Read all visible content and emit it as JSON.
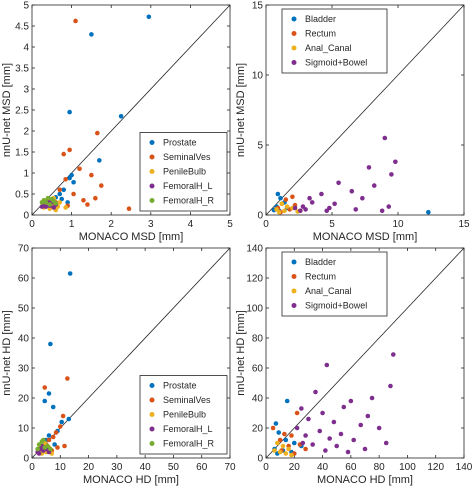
{
  "figure": {
    "colors": {
      "Prostate": "#0072BD",
      "SeminalVes": "#D95319",
      "PenileBulb": "#EDB120",
      "FemoralH_L": "#7E2F8E",
      "FemoralH_R": "#77AC30",
      "Bladder": "#0072BD",
      "Rectum": "#D95319",
      "Anal_Canal": "#EDB120",
      "Sigmoid+Bowel": "#7E2F8E"
    }
  },
  "chart_data": [
    {
      "type": "scatter",
      "xlabel": "MONACO MSD [mm]",
      "ylabel": "nnU-net MSD [mm]",
      "xlim": [
        0,
        5
      ],
      "ylim": [
        0,
        5
      ],
      "xticks": [
        0,
        1,
        2,
        3,
        4,
        5
      ],
      "yticks": [
        0,
        0.5,
        1,
        1.5,
        2,
        2.5,
        3,
        3.5,
        4,
        4.5,
        5
      ],
      "diagonal": true,
      "grid": false,
      "legend_position": "bottom-right",
      "series": [
        {
          "name": "Prostate",
          "points": [
            [
              2.95,
              4.72
            ],
            [
              1.5,
              4.3
            ],
            [
              0.95,
              2.45
            ],
            [
              2.25,
              2.35
            ],
            [
              1.7,
              1.3
            ],
            [
              1.0,
              0.95
            ],
            [
              0.95,
              0.88
            ],
            [
              1.05,
              0.78
            ],
            [
              0.8,
              0.6
            ],
            [
              0.7,
              0.5
            ],
            [
              0.6,
              0.42
            ],
            [
              0.5,
              0.35
            ],
            [
              0.45,
              0.3
            ],
            [
              0.75,
              0.38
            ],
            [
              0.9,
              0.3
            ]
          ]
        },
        {
          "name": "SeminalVes",
          "points": [
            [
              1.1,
              4.62
            ],
            [
              1.65,
              1.95
            ],
            [
              0.95,
              1.55
            ],
            [
              0.8,
              1.45
            ],
            [
              1.2,
              1.1
            ],
            [
              1.75,
              0.7
            ],
            [
              1.6,
              0.4
            ],
            [
              1.4,
              0.25
            ],
            [
              2.45,
              0.15
            ],
            [
              1.5,
              0.95
            ],
            [
              0.85,
              0.85
            ],
            [
              0.7,
              0.6
            ],
            [
              1.05,
              0.5
            ],
            [
              1.3,
              0.35
            ],
            [
              0.6,
              0.3
            ],
            [
              0.9,
              0.22
            ]
          ]
        },
        {
          "name": "PenileBulb",
          "points": [
            [
              0.4,
              0.35
            ],
            [
              0.55,
              0.4
            ],
            [
              0.7,
              0.3
            ],
            [
              0.35,
              0.25
            ],
            [
              0.5,
              0.22
            ],
            [
              0.65,
              0.2
            ],
            [
              0.85,
              0.18
            ],
            [
              0.45,
              0.15
            ],
            [
              0.3,
              0.18
            ],
            [
              0.6,
              0.12
            ]
          ]
        },
        {
          "name": "FemoralH_L",
          "points": [
            [
              0.3,
              0.28
            ],
            [
              0.4,
              0.32
            ],
            [
              0.5,
              0.3
            ],
            [
              0.35,
              0.2
            ],
            [
              0.45,
              0.22
            ],
            [
              0.55,
              0.18
            ],
            [
              0.25,
              0.2
            ],
            [
              0.6,
              0.25
            ]
          ]
        },
        {
          "name": "FemoralH_R",
          "points": [
            [
              0.3,
              0.35
            ],
            [
              0.4,
              0.4
            ],
            [
              0.5,
              0.38
            ],
            [
              0.35,
              0.3
            ],
            [
              0.45,
              0.25
            ],
            [
              0.55,
              0.33
            ],
            [
              0.6,
              0.28
            ],
            [
              0.25,
              0.3
            ]
          ]
        }
      ]
    },
    {
      "type": "scatter",
      "xlabel": "MONACO MSD [mm]",
      "ylabel": "nnU-net MSD [mm]",
      "xlim": [
        0,
        15
      ],
      "ylim": [
        0,
        15
      ],
      "xticks": [
        0,
        5,
        10,
        15
      ],
      "yticks": [
        0,
        5,
        10,
        15
      ],
      "diagonal": true,
      "grid": false,
      "legend_position": "top-left",
      "series": [
        {
          "name": "Bladder",
          "points": [
            [
              12.3,
              0.2
            ],
            [
              0.9,
              1.5
            ],
            [
              1.1,
              1.2
            ],
            [
              1.4,
              0.9
            ],
            [
              0.8,
              0.6
            ],
            [
              1.6,
              0.5
            ],
            [
              0.6,
              0.35
            ],
            [
              1.0,
              0.3
            ]
          ]
        },
        {
          "name": "Rectum",
          "points": [
            [
              2.0,
              1.3
            ],
            [
              1.5,
              1.1
            ],
            [
              1.2,
              0.8
            ],
            [
              2.2,
              0.7
            ],
            [
              0.9,
              0.5
            ],
            [
              1.8,
              0.4
            ],
            [
              2.6,
              0.3
            ],
            [
              1.1,
              0.2
            ]
          ]
        },
        {
          "name": "Anal_Canal",
          "points": [
            [
              1.2,
              0.8
            ],
            [
              1.6,
              0.6
            ],
            [
              2.0,
              0.5
            ],
            [
              0.8,
              0.4
            ],
            [
              1.4,
              0.3
            ],
            [
              2.4,
              0.25
            ],
            [
              1.0,
              0.2
            ]
          ]
        },
        {
          "name": "Sigmoid+Bowel",
          "points": [
            [
              9.0,
              5.5
            ],
            [
              9.8,
              3.8
            ],
            [
              7.8,
              3.4
            ],
            [
              5.5,
              2.3
            ],
            [
              9.5,
              2.9
            ],
            [
              8.2,
              2.1
            ],
            [
              6.5,
              1.7
            ],
            [
              4.2,
              1.5
            ],
            [
              7.3,
              1.2
            ],
            [
              3.5,
              0.9
            ],
            [
              5.2,
              0.8
            ],
            [
              9.3,
              0.6
            ],
            [
              4.8,
              0.5
            ],
            [
              3.0,
              0.4
            ],
            [
              6.8,
              0.4
            ],
            [
              2.6,
              0.3
            ],
            [
              2.8,
              0.6
            ],
            [
              3.3,
              1.2
            ],
            [
              4.6,
              0.3
            ],
            [
              8.8,
              0.3
            ],
            [
              2.2,
              0.5
            ]
          ]
        }
      ]
    },
    {
      "type": "scatter",
      "xlabel": "MONACO HD [mm]",
      "ylabel": "nnU-net HD [mm]",
      "xlim": [
        0,
        70
      ],
      "ylim": [
        0,
        70
      ],
      "xticks": [
        0,
        10,
        20,
        30,
        40,
        50,
        60,
        70
      ],
      "yticks": [
        0,
        10,
        20,
        30,
        40,
        50,
        60,
        70
      ],
      "diagonal": true,
      "grid": false,
      "legend_position": "bottom-right",
      "series": [
        {
          "name": "Prostate",
          "points": [
            [
              13.5,
              61.5
            ],
            [
              6.5,
              38.0
            ],
            [
              6.0,
              21.5
            ],
            [
              4.5,
              19.0
            ],
            [
              7.5,
              17.0
            ],
            [
              13.0,
              13.0
            ],
            [
              10.5,
              12.0
            ],
            [
              9.0,
              9.0
            ],
            [
              6.0,
              7.5
            ],
            [
              5.0,
              6.0
            ],
            [
              8.0,
              4.5
            ],
            [
              4.0,
              3.5
            ]
          ]
        },
        {
          "name": "SeminalVes",
          "points": [
            [
              4.5,
              23.5
            ],
            [
              12.5,
              26.5
            ],
            [
              11.0,
              14.0
            ],
            [
              10.0,
              10.5
            ],
            [
              8.5,
              8.5
            ],
            [
              7.5,
              7.0
            ],
            [
              6.0,
              6.0
            ],
            [
              5.0,
              4.5
            ],
            [
              11.5,
              4.0
            ],
            [
              9.0,
              3.5
            ],
            [
              3.5,
              3.0
            ],
            [
              7.0,
              2.5
            ]
          ]
        },
        {
          "name": "PenileBulb",
          "points": [
            [
              3.0,
              4.0
            ],
            [
              4.5,
              5.0
            ],
            [
              6.0,
              3.5
            ],
            [
              2.5,
              2.5
            ],
            [
              5.0,
              2.0
            ],
            [
              7.0,
              1.5
            ],
            [
              3.5,
              1.5
            ]
          ]
        },
        {
          "name": "FemoralH_L",
          "points": [
            [
              2.0,
              2.0
            ],
            [
              3.0,
              3.0
            ],
            [
              4.0,
              2.5
            ],
            [
              5.0,
              3.0
            ],
            [
              2.5,
              1.5
            ],
            [
              6.0,
              2.0
            ],
            [
              3.5,
              4.0
            ]
          ]
        },
        {
          "name": "FemoralH_R",
          "points": [
            [
              2.5,
              4.5
            ],
            [
              3.5,
              5.5
            ],
            [
              4.5,
              3.5
            ],
            [
              5.5,
              4.0
            ],
            [
              6.5,
              3.0
            ],
            [
              2.0,
              3.0
            ],
            [
              4.0,
              6.0
            ]
          ]
        }
      ]
    },
    {
      "type": "scatter",
      "xlabel": "MONACO HD [mm]",
      "ylabel": "nnU-net HD [mm]",
      "xlim": [
        0,
        140
      ],
      "ylim": [
        0,
        140
      ],
      "xticks": [
        0,
        20,
        40,
        60,
        80,
        100,
        120,
        140
      ],
      "yticks": [
        0,
        20,
        40,
        60,
        80,
        100,
        120,
        140
      ],
      "diagonal": true,
      "grid": false,
      "legend_position": "top-left",
      "series": [
        {
          "name": "Bladder",
          "points": [
            [
              15.0,
              38.0
            ],
            [
              7.0,
              23.0
            ],
            [
              9.0,
              17.0
            ],
            [
              14.0,
              12.0
            ],
            [
              20.0,
              10.0
            ],
            [
              25.0,
              8.0
            ],
            [
              6.0,
              6.0
            ],
            [
              12.0,
              5.0
            ],
            [
              18.0,
              4.0
            ],
            [
              8.0,
              3.0
            ]
          ]
        },
        {
          "name": "Rectum",
          "points": [
            [
              22.0,
              30.0
            ],
            [
              5.0,
              20.0
            ],
            [
              13.0,
              16.0
            ],
            [
              18.0,
              15.0
            ],
            [
              10.0,
              12.0
            ],
            [
              24.0,
              9.0
            ],
            [
              16.0,
              8.0
            ],
            [
              28.0,
              6.0
            ],
            [
              11.0,
              5.0
            ],
            [
              20.0,
              3.0
            ]
          ]
        },
        {
          "name": "Anal_Canal",
          "points": [
            [
              8.0,
              10.0
            ],
            [
              12.0,
              8.0
            ],
            [
              16.0,
              6.0
            ],
            [
              6.0,
              5.0
            ],
            [
              10.0,
              4.0
            ],
            [
              14.0,
              3.0
            ],
            [
              18.0,
              2.0
            ]
          ]
        },
        {
          "name": "Sigmoid+Bowel",
          "points": [
            [
              65.0,
              135.0
            ],
            [
              90.0,
              69.0
            ],
            [
              43.0,
              62.0
            ],
            [
              88.0,
              48.0
            ],
            [
              35.0,
              44.0
            ],
            [
              75.0,
              40.0
            ],
            [
              60.0,
              38.0
            ],
            [
              55.0,
              34.0
            ],
            [
              25.0,
              33.0
            ],
            [
              40.0,
              30.0
            ],
            [
              72.0,
              28.0
            ],
            [
              30.0,
              26.0
            ],
            [
              48.0,
              24.0
            ],
            [
              67.0,
              22.0
            ],
            [
              80.0,
              20.0
            ],
            [
              38.0,
              18.0
            ],
            [
              53.0,
              16.0
            ],
            [
              28.0,
              15.0
            ],
            [
              45.0,
              13.0
            ],
            [
              62.0,
              12.0
            ],
            [
              85.0,
              10.0
            ],
            [
              33.0,
              9.0
            ],
            [
              50.0,
              8.0
            ],
            [
              70.0,
              6.0
            ],
            [
              22.0,
              20.0
            ],
            [
              42.0,
              5.0
            ],
            [
              58.0,
              4.0
            ],
            [
              26.0,
              10.0
            ]
          ]
        }
      ]
    }
  ]
}
